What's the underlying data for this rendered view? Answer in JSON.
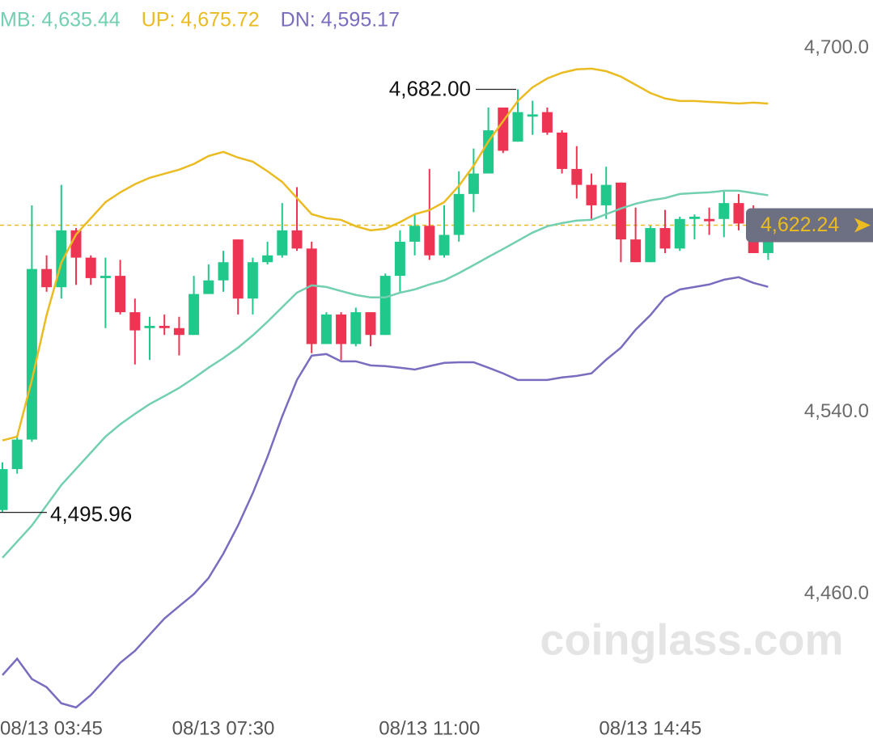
{
  "chart_data": {
    "type": "candlestick",
    "watermark": "coinglass.com",
    "categories": [
      "08/13 03:45",
      null,
      null,
      null,
      null,
      null,
      null,
      null,
      null,
      null,
      null,
      null,
      null,
      null,
      null,
      "08/13 07:30",
      null,
      null,
      null,
      null,
      null,
      null,
      null,
      null,
      null,
      null,
      null,
      null,
      null,
      "08/13 11:00",
      null,
      null,
      null,
      null,
      null,
      null,
      null,
      null,
      null,
      null,
      null,
      null,
      null,
      null,
      "08/13 14:45",
      null,
      null,
      null,
      null,
      null,
      null,
      null,
      null
    ],
    "open": [
      4497,
      4515,
      4528,
      4603,
      4595,
      4620,
      4608,
      4599,
      4600,
      4584,
      4577,
      4578,
      4577,
      4574,
      4592,
      4598,
      4616,
      4590,
      4606,
      4609,
      4620,
      4612,
      4570,
      4583,
      4570,
      4584,
      4574,
      4600,
      4615,
      4622,
      4609,
      4618,
      4636,
      4645,
      4674,
      4659,
      4670,
      4672,
      4663,
      4647,
      4640,
      4631,
      4641,
      4616,
      4606,
      4621,
      4612,
      4625,
      4625,
      4625,
      4632,
      4623,
      4610
    ],
    "high": [
      4518,
      4530,
      4631,
      4609,
      4640,
      4621,
      4609,
      4608,
      4607,
      4590,
      4582,
      4583,
      4582,
      4600,
      4605,
      4611,
      4616,
      4608,
      4615,
      4632,
      4639,
      4615,
      4584,
      4584,
      4586,
      4584,
      4601,
      4620,
      4627,
      4647,
      4631,
      4646,
      4656,
      4674,
      4674,
      4682,
      4677,
      4674,
      4664,
      4657,
      4645,
      4648,
      4641,
      4630,
      4622,
      4629,
      4626,
      4627,
      4630,
      4637,
      4636,
      4631,
      4623
    ],
    "low": [
      4495.96,
      4513,
      4527,
      4593,
      4590,
      4596,
      4596,
      4577,
      4583,
      4561,
      4563,
      4574,
      4565,
      4574,
      4592,
      4593,
      4583,
      4583,
      4605,
      4608,
      4611,
      4566,
      4570,
      4563,
      4569,
      4569,
      4574,
      4593,
      4609,
      4607,
      4608,
      4615,
      4628,
      4645,
      4654,
      4659,
      4662,
      4662,
      4645,
      4634,
      4625,
      4625,
      4606,
      4606,
      4606,
      4610,
      4611,
      4616,
      4618,
      4617,
      4620,
      4610,
      4607
    ],
    "close": [
      4515,
      4528,
      4603,
      4595,
      4620,
      4608,
      4599,
      4600,
      4584,
      4576,
      4578,
      4577,
      4574,
      4592,
      4598,
      4606,
      4590,
      4606,
      4609,
      4620,
      4612,
      4570,
      4583,
      4570,
      4584,
      4574,
      4600,
      4615,
      4622,
      4609,
      4618,
      4636,
      4645,
      4664,
      4655,
      4672,
      4671,
      4663,
      4647,
      4640,
      4631,
      4640,
      4616,
      4606,
      4621,
      4612,
      4625,
      4626,
      4624,
      4632,
      4623,
      4610,
      4622.24
    ],
    "up_color": "#20c98b",
    "down_color": "#ee3453",
    "series": [
      {
        "name": "MB: 4,635.44",
        "color": "#72cfb2",
        "values": [
          4476.0,
          4483.1,
          4490.2,
          4499.1,
          4508.0,
          4515.1,
          4522.2,
          4529.3,
          4534.7,
          4539.3,
          4543.6,
          4547.1,
          4550.7,
          4555.0,
          4559.6,
          4563.8,
          4568.4,
          4573.8,
          4579.8,
          4586.2,
          4592.6,
          4595.8,
          4595.1,
          4593.3,
          4591.6,
          4590.5,
          4590.5,
          4592.6,
          4594.0,
          4596.2,
          4598.0,
          4601.2,
          4604.7,
          4608.3,
          4611.8,
          4615.4,
          4619.0,
          4621.8,
          4623.2,
          4624.3,
          4624.6,
          4627.1,
          4629.6,
          4631.7,
          4633.2,
          4634.2,
          4636.0,
          4636.4,
          4636.7,
          4637.4,
          4637.4,
          4636.4,
          4635.44
        ]
      },
      {
        "name": "UP: 4,675.72",
        "color": "#ebbb22",
        "values": [
          4527.6,
          4529.3,
          4554.2,
          4582.7,
          4605.8,
          4618.2,
          4625.3,
          4632.4,
          4636.7,
          4640.3,
          4643.1,
          4644.9,
          4646.7,
          4649.2,
          4652.7,
          4654.5,
          4652.0,
          4650.2,
          4646.0,
          4641.3,
          4634.2,
          4627.1,
          4625.3,
          4624.6,
          4621.8,
          4620.0,
          4620.7,
          4623.6,
          4627.1,
          4628.9,
          4632.4,
          4639.6,
          4648.4,
          4659.1,
          4668.0,
          4676.9,
          4682.9,
          4686.8,
          4689.3,
          4690.8,
          4691.1,
          4690.0,
          4687.6,
          4684.0,
          4680.4,
          4678.0,
          4676.9,
          4676.9,
          4676.5,
          4676.2,
          4675.8,
          4676.2,
          4675.72
        ]
      },
      {
        "name": "DN: 4,595.17",
        "color": "#7a6cbf",
        "values": [
          4424.4,
          4431.6,
          4422.7,
          4419.1,
          4412.0,
          4410.2,
          4415.6,
          4422.7,
          4429.8,
          4435.1,
          4442.2,
          4449.3,
          4454.7,
          4460.0,
          4467.1,
          4477.8,
          4490.2,
          4504.4,
          4520.4,
          4538.2,
          4554.2,
          4564.9,
          4565.6,
          4562.4,
          4562.4,
          4560.6,
          4560.3,
          4559.6,
          4558.8,
          4560.3,
          4561.7,
          4562.0,
          4562.0,
          4559.6,
          4557.1,
          4554.2,
          4554.2,
          4554.2,
          4555.3,
          4556.0,
          4557.1,
          4563.1,
          4568.4,
          4576.3,
          4582.7,
          4590.5,
          4594.0,
          4595.1,
          4596.2,
          4598.3,
          4599.4,
          4596.9,
          4595.17
        ]
      }
    ],
    "ylim": [
      4408,
      4721.3
    ],
    "yticks": [
      {
        "value": 4700,
        "label": "4,700.0"
      },
      {
        "value": 4540,
        "label": "4,540.0"
      },
      {
        "value": 4460,
        "label": "4,460.0"
      }
    ],
    "annotations": [
      {
        "text": "4,682.00",
        "value": 4682
      },
      {
        "text": "4,495.96",
        "value": 4495.96
      }
    ],
    "last_price": {
      "value": 4622.24,
      "label": "4,622.24"
    }
  }
}
